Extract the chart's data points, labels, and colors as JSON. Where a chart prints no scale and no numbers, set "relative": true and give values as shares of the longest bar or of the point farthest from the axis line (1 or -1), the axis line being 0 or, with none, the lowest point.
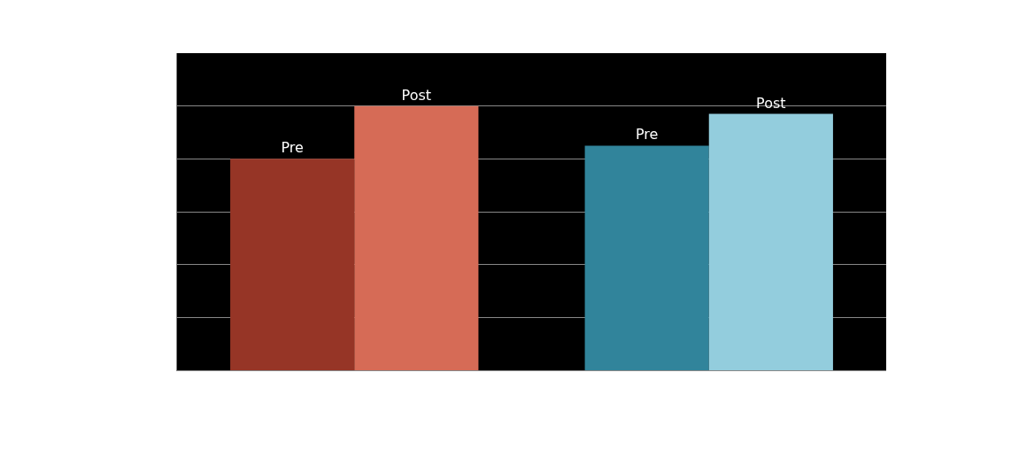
{
  "chart_data": {
    "type": "bar",
    "relative": true,
    "categories": [
      null,
      null
    ],
    "grid": "y",
    "legend": false,
    "series": [
      {
        "name": "Pre",
        "colors": [
          "#963526",
          "#31849b"
        ],
        "values": [
          0.8,
          0.85
        ]
      },
      {
        "name": "Post",
        "colors": [
          "#d66b56",
          "#93cddd"
        ],
        "values": [
          1,
          0.97
        ]
      }
    ]
  }
}
